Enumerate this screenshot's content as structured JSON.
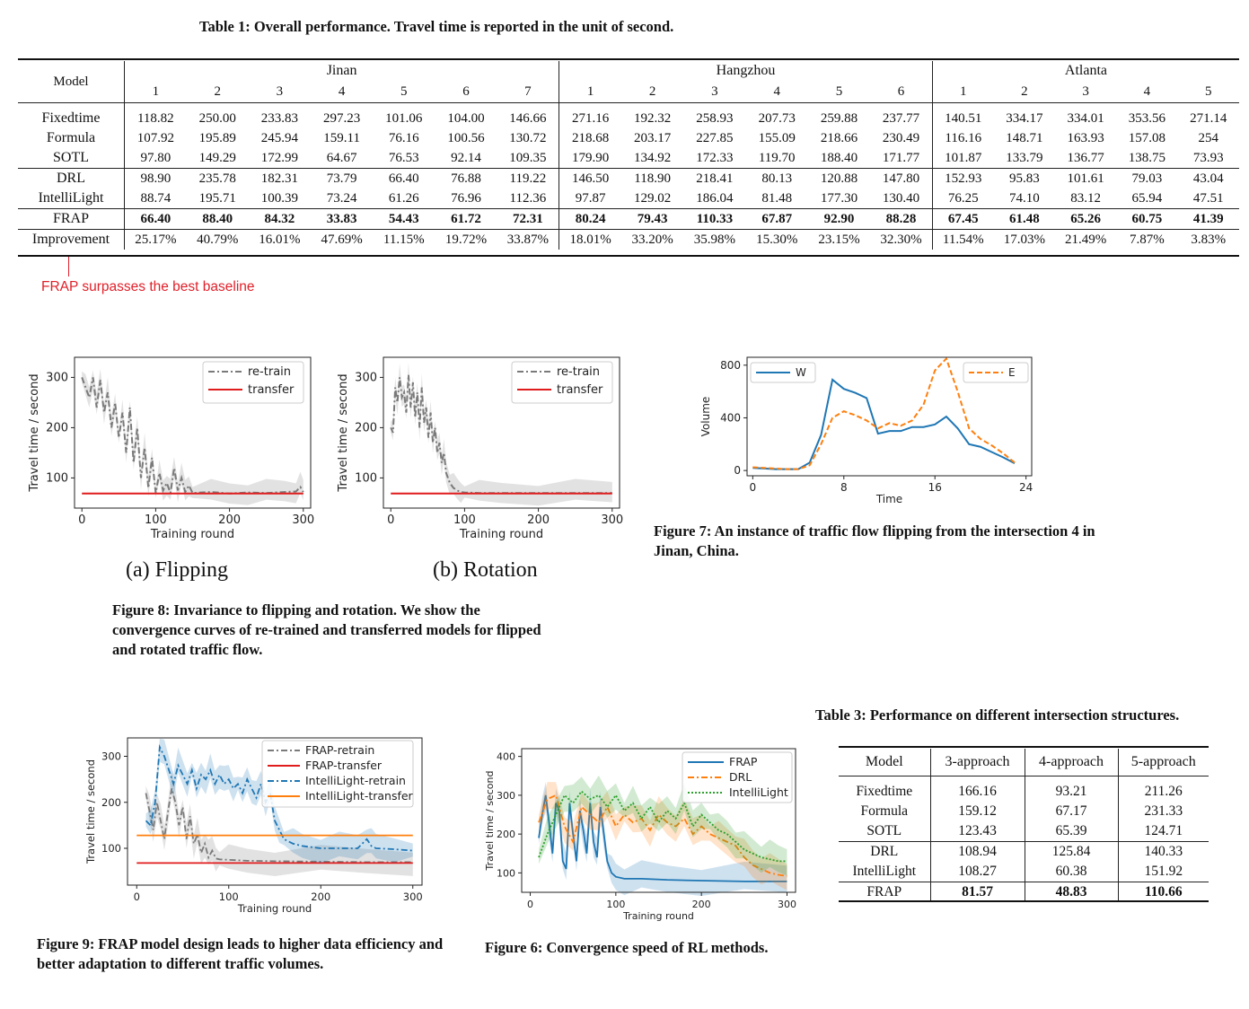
{
  "table1": {
    "caption": "Table 1: Overall performance. Travel time is reported in the unit of second.",
    "model_header": "Model",
    "groups": [
      {
        "name": "Jinan",
        "cols": [
          "1",
          "2",
          "3",
          "4",
          "5",
          "6",
          "7"
        ]
      },
      {
        "name": "Hangzhou",
        "cols": [
          "1",
          "2",
          "3",
          "4",
          "5",
          "6"
        ]
      },
      {
        "name": "Atlanta",
        "cols": [
          "1",
          "2",
          "3",
          "4",
          "5"
        ]
      }
    ],
    "rows": [
      {
        "model": "Fixedtime",
        "values": [
          "118.82",
          "250.00",
          "233.83",
          "297.23",
          "101.06",
          "104.00",
          "146.66",
          "271.16",
          "192.32",
          "258.93",
          "207.73",
          "259.88",
          "237.77",
          "140.51",
          "334.17",
          "334.01",
          "353.56",
          "271.14"
        ]
      },
      {
        "model": "Formula",
        "values": [
          "107.92",
          "195.89",
          "245.94",
          "159.11",
          "76.16",
          "100.56",
          "130.72",
          "218.68",
          "203.17",
          "227.85",
          "155.09",
          "218.66",
          "230.49",
          "116.16",
          "148.71",
          "163.93",
          "157.08",
          "254"
        ]
      },
      {
        "model": "SOTL",
        "values": [
          "97.80",
          "149.29",
          "172.99",
          "64.67",
          "76.53",
          "92.14",
          "109.35",
          "179.90",
          "134.92",
          "172.33",
          "119.70",
          "188.40",
          "171.77",
          "101.87",
          "133.79",
          "136.77",
          "138.75",
          "73.93"
        ]
      },
      {
        "model": "DRL",
        "values": [
          "98.90",
          "235.78",
          "182.31",
          "73.79",
          "66.40",
          "76.88",
          "119.22",
          "146.50",
          "118.90",
          "218.41",
          "80.13",
          "120.88",
          "147.80",
          "152.93",
          "95.83",
          "101.61",
          "79.03",
          "43.04"
        ]
      },
      {
        "model": "IntelliLight",
        "values": [
          "88.74",
          "195.71",
          "100.39",
          "73.24",
          "61.26",
          "76.96",
          "112.36",
          "97.87",
          "129.02",
          "186.04",
          "81.48",
          "177.30",
          "130.40",
          "76.25",
          "74.10",
          "83.12",
          "65.94",
          "47.51"
        ]
      },
      {
        "model": "FRAP",
        "values": [
          "66.40",
          "88.40",
          "84.32",
          "33.83",
          "54.43",
          "61.72",
          "72.31",
          "80.24",
          "79.43",
          "110.33",
          "67.87",
          "92.90",
          "88.28",
          "67.45",
          "61.48",
          "65.26",
          "60.75",
          "41.39"
        ]
      },
      {
        "model": "Improvement",
        "values": [
          "25.17%",
          "40.79%",
          "16.01%",
          "47.69%",
          "11.15%",
          "19.72%",
          "33.87%",
          "18.01%",
          "33.20%",
          "35.98%",
          "15.30%",
          "23.15%",
          "32.30%",
          "11.54%",
          "17.03%",
          "21.49%",
          "7.87%",
          "3.83%"
        ]
      }
    ]
  },
  "annotation": {
    "text": "FRAP surpasses the best baseline",
    "color": "#e0202a"
  },
  "figure8": {
    "caption": "Figure 8: Invariance to flipping and rotation. We show the convergence curves of re-trained and transferred models for flipped and rotated traffic flow.",
    "subcaption_a": "(a) Flipping",
    "subcaption_b": "(b) Rotation"
  },
  "figure7": {
    "caption": "Figure 7: An instance of traffic flow flipping from the intersection 4 in Jinan, China."
  },
  "figure9": {
    "caption": "Figure 9: FRAP model design leads to higher data efficiency and better adaptation to different traffic volumes."
  },
  "figure6": {
    "caption": "Figure 6: Convergence speed of RL methods."
  },
  "table3": {
    "caption": "Table 3: Performance on different intersection structures.",
    "headers": [
      "Model",
      "3-approach",
      "4-approach",
      "5-approach"
    ],
    "rows": [
      {
        "model": "Fixedtime",
        "values": [
          "166.16",
          "93.21",
          "211.26"
        ]
      },
      {
        "model": "Formula",
        "values": [
          "159.12",
          "67.17",
          "231.33"
        ]
      },
      {
        "model": "SOTL",
        "values": [
          "123.43",
          "65.39",
          "124.71"
        ]
      },
      {
        "model": "DRL",
        "values": [
          "108.94",
          "125.84",
          "140.33"
        ]
      },
      {
        "model": "IntelliLight",
        "values": [
          "108.27",
          "60.38",
          "151.92"
        ]
      },
      {
        "model": "FRAP",
        "values": [
          "81.57",
          "48.83",
          "110.66"
        ]
      }
    ]
  },
  "chart_data": [
    {
      "id": "fig8a",
      "type": "line",
      "title": "",
      "xlabel": "Training round",
      "ylabel": "Travel time / second",
      "xlim": [
        -10,
        310
      ],
      "ylim": [
        40,
        340
      ],
      "xticks": [
        "0",
        "100",
        "200",
        "300"
      ],
      "yticks": [
        "100",
        "200",
        "300"
      ],
      "legend": "top-right",
      "series": [
        {
          "name": "re-train",
          "color": "#7a7a7a",
          "style": "dashdot",
          "band": true,
          "x": [
            0,
            5,
            10,
            15,
            20,
            25,
            30,
            35,
            40,
            45,
            50,
            55,
            60,
            65,
            70,
            75,
            80,
            85,
            90,
            95,
            100,
            105,
            110,
            115,
            120,
            125,
            130,
            135,
            140,
            145,
            150,
            175,
            200,
            225,
            250,
            275,
            290,
            296,
            300
          ],
          "y": [
            300,
            280,
            260,
            300,
            240,
            295,
            230,
            270,
            200,
            250,
            180,
            230,
            150,
            240,
            130,
            200,
            100,
            160,
            80,
            140,
            70,
            110,
            75,
            90,
            70,
            120,
            75,
            100,
            72,
            85,
            70,
            72,
            69,
            71,
            70,
            72,
            73,
            82,
            72
          ]
        },
        {
          "name": "transfer",
          "color": "#e01c1c",
          "style": "solid",
          "x": [
            0,
            300
          ],
          "y": [
            69,
            69
          ]
        }
      ]
    },
    {
      "id": "fig8b",
      "type": "line",
      "title": "",
      "xlabel": "Training round",
      "ylabel": "Travel time / second",
      "xlim": [
        -10,
        310
      ],
      "ylim": [
        40,
        340
      ],
      "xticks": [
        "0",
        "100",
        "200",
        "300"
      ],
      "yticks": [
        "100",
        "200",
        "300"
      ],
      "legend": "top-right",
      "series": [
        {
          "name": "re-train",
          "color": "#7a7a7a",
          "style": "dashdot",
          "band": true,
          "x": [
            0,
            3,
            6,
            9,
            12,
            15,
            18,
            21,
            24,
            27,
            30,
            33,
            36,
            39,
            42,
            45,
            48,
            51,
            54,
            57,
            60,
            63,
            66,
            69,
            72,
            75,
            80,
            85,
            90,
            95,
            100,
            120,
            150,
            200,
            250,
            300
          ],
          "y": [
            200,
            190,
            280,
            250,
            300,
            260,
            270,
            230,
            305,
            240,
            290,
            220,
            270,
            200,
            280,
            210,
            240,
            180,
            230,
            170,
            200,
            150,
            170,
            130,
            150,
            110,
            90,
            80,
            75,
            72,
            71,
            70,
            70,
            70,
            70,
            70
          ]
        },
        {
          "name": "transfer",
          "color": "#e01c1c",
          "style": "solid",
          "x": [
            0,
            300
          ],
          "y": [
            69,
            69
          ]
        }
      ]
    },
    {
      "id": "fig7",
      "type": "line",
      "title": "",
      "xlabel": "Time",
      "ylabel": "Volume",
      "xlim": [
        -0.5,
        24.5
      ],
      "ylim": [
        -40,
        860
      ],
      "xticks": [
        "0",
        "8",
        "16",
        "24"
      ],
      "yticks": [
        "0",
        "400",
        "800"
      ],
      "legend": "top-left and top-right",
      "series": [
        {
          "name": "W",
          "color": "#1f77b4",
          "style": "solid",
          "x": [
            0,
            1,
            2,
            3,
            4,
            5,
            6,
            7,
            8,
            9,
            10,
            11,
            12,
            13,
            14,
            15,
            16,
            17,
            18,
            19,
            20,
            21,
            22,
            23
          ],
          "y": [
            20,
            15,
            10,
            10,
            10,
            60,
            270,
            690,
            620,
            590,
            550,
            280,
            300,
            300,
            330,
            330,
            350,
            410,
            320,
            200,
            180,
            140,
            100,
            55
          ]
        },
        {
          "name": "E",
          "color": "#ff7f0e",
          "style": "dashed",
          "x": [
            0,
            1,
            2,
            3,
            4,
            5,
            6,
            7,
            8,
            9,
            10,
            11,
            12,
            13,
            14,
            15,
            16,
            17,
            18,
            19,
            20,
            21,
            22,
            23
          ],
          "y": [
            25,
            20,
            15,
            10,
            10,
            40,
            200,
            400,
            450,
            420,
            380,
            320,
            360,
            340,
            380,
            500,
            760,
            850,
            600,
            320,
            240,
            190,
            130,
            60
          ]
        }
      ]
    },
    {
      "id": "fig9",
      "type": "line",
      "title": "",
      "xlabel": "Training round",
      "ylabel": "Travel time / second",
      "xlim": [
        -10,
        310
      ],
      "ylim": [
        20,
        340
      ],
      "xticks": [
        "0",
        "100",
        "200",
        "300"
      ],
      "yticks": [
        "100",
        "200",
        "300"
      ],
      "legend": "top-right",
      "series": [
        {
          "name": "FRAP-retrain",
          "color": "#7a7a7a",
          "style": "dashdot",
          "band": true,
          "x": [
            10,
            14,
            18,
            22,
            26,
            30,
            34,
            38,
            42,
            46,
            50,
            54,
            58,
            62,
            66,
            70,
            74,
            78,
            82,
            86,
            90,
            100,
            120,
            150,
            200,
            250,
            300
          ],
          "y": [
            220,
            180,
            140,
            200,
            160,
            120,
            180,
            230,
            200,
            150,
            190,
            120,
            170,
            110,
            130,
            90,
            110,
            80,
            95,
            78,
            76,
            75,
            73,
            72,
            71,
            70,
            70
          ]
        },
        {
          "name": "FRAP-transfer",
          "color": "#e01c1c",
          "style": "solid",
          "x": [
            0,
            300
          ],
          "y": [
            68,
            68
          ]
        },
        {
          "name": "IntelliLight-retrain",
          "color": "#1f77b4",
          "style": "dashdot",
          "band": true,
          "x": [
            10,
            15,
            20,
            25,
            30,
            35,
            40,
            45,
            50,
            55,
            60,
            65,
            70,
            75,
            80,
            85,
            90,
            95,
            100,
            105,
            110,
            115,
            120,
            125,
            130,
            135,
            140,
            145,
            150,
            155,
            160,
            170,
            180,
            200,
            220,
            240,
            250,
            255,
            260,
            280,
            300
          ],
          "y": [
            160,
            150,
            200,
            320,
            300,
            270,
            240,
            280,
            260,
            240,
            270,
            230,
            260,
            250,
            270,
            240,
            260,
            240,
            250,
            230,
            240,
            220,
            250,
            230,
            210,
            240,
            200,
            220,
            160,
            140,
            120,
            110,
            105,
            100,
            100,
            100,
            120,
            105,
            100,
            98,
            95
          ]
        },
        {
          "name": "IntelliLight-transfer",
          "color": "#ff7f0e",
          "style": "solid",
          "x": [
            0,
            300
          ],
          "y": [
            128,
            128
          ]
        }
      ]
    },
    {
      "id": "fig6",
      "type": "line",
      "title": "",
      "xlabel": "Training round",
      "ylabel": "Travel time / second",
      "xlim": [
        -10,
        310
      ],
      "ylim": [
        50,
        420
      ],
      "xticks": [
        "0",
        "100",
        "200",
        "300"
      ],
      "yticks": [
        "100",
        "200",
        "300",
        "400"
      ],
      "legend": "top-right",
      "series": [
        {
          "name": "FRAP",
          "color": "#1f77b4",
          "style": "solid",
          "band": true,
          "x": [
            10,
            14,
            18,
            22,
            26,
            30,
            34,
            38,
            42,
            46,
            50,
            54,
            58,
            62,
            66,
            70,
            74,
            78,
            82,
            86,
            90,
            95,
            100,
            110,
            130,
            160,
            200,
            250,
            300
          ],
          "y": [
            190,
            250,
            300,
            230,
            150,
            280,
            260,
            130,
            110,
            280,
            200,
            130,
            260,
            210,
            150,
            280,
            180,
            140,
            270,
            200,
            130,
            100,
            90,
            85,
            85,
            82,
            80,
            78,
            78
          ]
        },
        {
          "name": "DRL",
          "color": "#ff7f0e",
          "style": "dashdot",
          "band": true,
          "x": [
            10,
            20,
            30,
            40,
            50,
            60,
            70,
            80,
            90,
            100,
            110,
            120,
            130,
            140,
            150,
            160,
            170,
            180,
            190,
            200,
            210,
            220,
            230,
            240,
            250,
            260,
            270,
            280,
            290,
            300
          ],
          "y": [
            230,
            290,
            300,
            220,
            180,
            270,
            250,
            230,
            270,
            220,
            250,
            230,
            240,
            210,
            250,
            230,
            220,
            240,
            200,
            220,
            200,
            190,
            180,
            170,
            140,
            120,
            110,
            100,
            95,
            92
          ]
        },
        {
          "name": "IntelliLight",
          "color": "#2ca02c",
          "style": "dotted",
          "band": true,
          "x": [
            10,
            20,
            30,
            40,
            50,
            60,
            70,
            80,
            90,
            100,
            110,
            120,
            130,
            140,
            150,
            160,
            170,
            180,
            190,
            200,
            210,
            220,
            230,
            240,
            250,
            260,
            270,
            280,
            290,
            300
          ],
          "y": [
            140,
            200,
            250,
            300,
            280,
            310,
            290,
            300,
            270,
            300,
            260,
            280,
            240,
            270,
            230,
            260,
            240,
            280,
            220,
            250,
            230,
            210,
            200,
            180,
            160,
            150,
            140,
            135,
            130,
            130
          ]
        }
      ]
    }
  ]
}
